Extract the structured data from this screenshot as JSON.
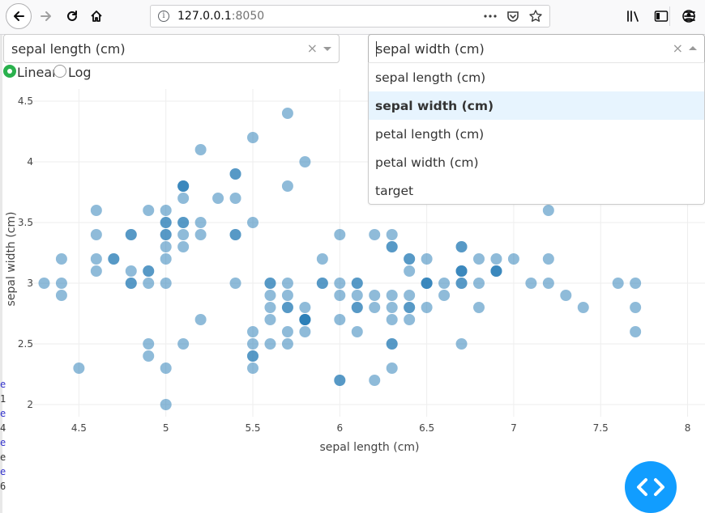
{
  "browser": {
    "url_host": "127.0.0.1",
    "url_port": ":8050",
    "icons": {
      "back": "back-arrow-icon",
      "forward": "forward-arrow-icon",
      "reload": "reload-icon",
      "home": "home-icon",
      "info": "info-icon",
      "more": "more-icon",
      "pocket": "pocket-icon",
      "bookmark": "bookmark-star-icon",
      "library": "library-icon",
      "sidebar": "sidebar-icon",
      "account": "account-icon",
      "menu": "hamburger-menu-icon"
    }
  },
  "controls": {
    "x_dropdown": {
      "value": "sepal length (cm)"
    },
    "y_dropdown": {
      "value": "sepal width (cm)",
      "options": [
        "sepal length (cm)",
        "sepal width (cm)",
        "petal length (cm)",
        "petal width (cm)",
        "target"
      ],
      "selected_index": 1
    },
    "scale_radio": {
      "options": [
        "Linear",
        "Log"
      ],
      "selected": "Linear"
    }
  },
  "colors": {
    "point": "#1f77b4",
    "radio_selected": "#2ab14d",
    "fab": "#119dff",
    "option_highlight": "#e7f4fe"
  },
  "left_fragments": [
    "e",
    "1",
    "e",
    "4",
    "e",
    "e",
    "e",
    "6"
  ],
  "chart_data": {
    "type": "scatter",
    "xlabel": "sepal length (cm)",
    "ylabel": "sepal width (cm)",
    "xlim": [
      4.2,
      8.1
    ],
    "ylim": [
      1.9,
      4.6
    ],
    "xticks": [
      "4.5",
      "5",
      "5.5",
      "6",
      "6.5",
      "7",
      "7.5",
      "8"
    ],
    "yticks": [
      "2",
      "2.5",
      "3",
      "3.5",
      "4",
      "4.5"
    ],
    "grid": true,
    "x": [
      5.1,
      4.9,
      4.7,
      4.6,
      5.0,
      5.4,
      4.6,
      5.0,
      4.4,
      4.9,
      5.4,
      4.8,
      4.8,
      4.3,
      5.8,
      5.7,
      5.4,
      5.1,
      5.7,
      5.1,
      5.4,
      5.1,
      4.6,
      5.1,
      4.8,
      5.0,
      5.0,
      5.2,
      5.2,
      4.7,
      4.8,
      5.4,
      5.2,
      5.5,
      4.9,
      5.0,
      5.5,
      4.9,
      4.4,
      5.1,
      5.0,
      4.5,
      4.4,
      5.0,
      5.1,
      4.8,
      5.1,
      4.6,
      5.3,
      5.0,
      7.0,
      6.4,
      6.9,
      5.5,
      6.5,
      5.7,
      6.3,
      4.9,
      6.6,
      5.2,
      5.0,
      5.9,
      6.0,
      6.1,
      5.6,
      6.7,
      5.6,
      5.8,
      6.2,
      5.6,
      5.9,
      6.1,
      6.3,
      6.1,
      6.4,
      6.6,
      6.8,
      6.7,
      6.0,
      5.7,
      5.5,
      5.5,
      5.8,
      6.0,
      5.4,
      6.0,
      6.7,
      6.3,
      5.6,
      5.5,
      5.5,
      6.1,
      5.8,
      5.0,
      5.6,
      5.7,
      5.7,
      6.2,
      5.1,
      5.7,
      6.3,
      5.8,
      7.1,
      6.3,
      6.5,
      7.6,
      4.9,
      7.3,
      6.7,
      7.2,
      6.5,
      6.4,
      6.8,
      5.7,
      5.8,
      6.4,
      6.5,
      7.7,
      7.7,
      6.0,
      6.9,
      5.6,
      7.7,
      6.3,
      6.7,
      7.2,
      6.2,
      6.1,
      6.4,
      7.2,
      7.4,
      7.9,
      6.4,
      6.3,
      6.1,
      7.7,
      6.3,
      6.4,
      6.0,
      6.9,
      6.7,
      6.9,
      5.8,
      6.8,
      6.7,
      6.7,
      6.3,
      6.5,
      6.2,
      5.9
    ],
    "y": [
      3.5,
      3.0,
      3.2,
      3.1,
      3.6,
      3.9,
      3.4,
      3.4,
      2.9,
      3.1,
      3.7,
      3.4,
      3.0,
      3.0,
      4.0,
      4.4,
      3.9,
      3.5,
      3.8,
      3.8,
      3.4,
      3.7,
      3.6,
      3.3,
      3.4,
      3.0,
      3.4,
      3.5,
      3.4,
      3.2,
      3.1,
      3.4,
      4.1,
      4.2,
      3.1,
      3.2,
      3.5,
      3.6,
      3.0,
      3.4,
      3.5,
      2.3,
      3.2,
      3.5,
      3.8,
      3.0,
      3.8,
      3.2,
      3.7,
      3.3,
      3.2,
      3.2,
      3.1,
      2.3,
      2.8,
      2.8,
      3.3,
      2.4,
      2.9,
      2.7,
      2.0,
      3.0,
      2.2,
      2.9,
      2.9,
      3.1,
      3.0,
      2.7,
      2.2,
      2.5,
      3.2,
      2.8,
      2.5,
      2.8,
      2.9,
      3.0,
      2.8,
      3.0,
      2.9,
      2.6,
      2.4,
      2.4,
      2.7,
      2.7,
      3.0,
      3.4,
      3.1,
      2.3,
      3.0,
      2.5,
      2.6,
      3.0,
      2.6,
      2.3,
      2.7,
      3.0,
      2.9,
      2.9,
      2.5,
      2.8,
      3.3,
      2.7,
      3.0,
      2.9,
      3.0,
      3.0,
      2.5,
      2.9,
      2.5,
      3.6,
      3.2,
      2.7,
      3.0,
      2.5,
      2.8,
      3.2,
      3.0,
      3.8,
      2.6,
      2.2,
      3.2,
      2.8,
      2.8,
      2.7,
      3.3,
      3.2,
      2.8,
      3.0,
      2.8,
      3.0,
      2.8,
      3.8,
      2.8,
      2.8,
      2.6,
      3.0,
      3.4,
      3.1,
      3.0,
      3.1,
      3.1,
      3.1,
      2.7,
      3.2,
      3.3,
      3.0,
      2.5,
      3.0,
      3.4,
      3.0
    ]
  }
}
